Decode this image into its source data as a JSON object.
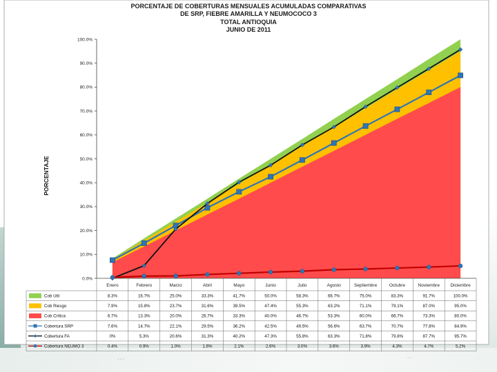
{
  "chart_data": {
    "type": "area",
    "title_lines": [
      "PORCENTAJE DE COBERTURAS MENSUALES ACUMULADAS COMPARATIVAS",
      "DE SRP, FIEBRE AMARILLA Y NEUMOCOCO 3",
      "TOTAL ANTIOQUIA",
      "JUNIO DE 2011"
    ],
    "ylabel": "PORCENTAJE",
    "ylim": [
      0,
      100
    ],
    "y_ticks": [
      "0.0%",
      "10.0%",
      "20.0%",
      "30.0%",
      "40.0%",
      "50.0%",
      "60.0%",
      "70.0%",
      "80.0%",
      "90.0%",
      "100.0%"
    ],
    "categories": [
      "Enero",
      "Febrero",
      "Marzo",
      "Abril",
      "Mayo",
      "Junio",
      "Julio",
      "Agosto",
      "Septiembre",
      "Octubre",
      "Noviembre",
      "Diciembre"
    ],
    "stacked_areas": [
      {
        "name": "Cob Crítica",
        "color": "#ff4b4b",
        "values": [
          6.7,
          13.3,
          20.0,
          26.7,
          33.3,
          40.0,
          46.7,
          53.3,
          60.0,
          66.7,
          73.3,
          80.0
        ],
        "labels": [
          "6.7%",
          "13.3%",
          "20.0%",
          "26.7%",
          "33.3%",
          "40.0%",
          "46.7%",
          "53.3%",
          "60.0%",
          "66.7%",
          "73.3%",
          "80.0%"
        ]
      },
      {
        "name": "Cob Riesgo",
        "color": "#ffc000",
        "values": [
          7.9,
          15.8,
          23.7,
          31.6,
          39.5,
          47.4,
          55.3,
          63.2,
          71.1,
          79.1,
          87.0,
          95.0
        ],
        "labels": [
          "7.9%",
          "15.8%",
          "23.7%",
          "31.6%",
          "39.5%",
          "47.4%",
          "55.3%",
          "63.2%",
          "71.1%",
          "79.1%",
          "87.0%",
          "95.0%"
        ]
      },
      {
        "name": "Cob Util",
        "color": "#92d050",
        "values": [
          8.3,
          16.7,
          25.0,
          33.3,
          41.7,
          50.0,
          58.3,
          66.7,
          75.0,
          83.3,
          91.7,
          100.0
        ],
        "labels": [
          "8.3%",
          "16.7%",
          "25.0%",
          "33.3%",
          "41.7%",
          "50.0%",
          "58.3%",
          "66.7%",
          "75.0%",
          "83.3%",
          "91.7%",
          "100.0%"
        ]
      }
    ],
    "line_series": [
      {
        "name": "Cobertura SRP",
        "color": "#2e75b6",
        "marker": "square",
        "width": 2.2,
        "values": [
          7.6,
          14.7,
          22.1,
          29.5,
          36.2,
          42.5,
          49.5,
          56.6,
          63.7,
          70.7,
          77.8,
          84.9
        ],
        "labels": [
          "7.6%",
          "14.7%",
          "22.1%",
          "29.5%",
          "36.2%",
          "42.5%",
          "49.5%",
          "56.6%",
          "63.7%",
          "70.7%",
          "77.8%",
          "84.9%"
        ]
      },
      {
        "name": "Cobertura FA",
        "color": "#111111",
        "marker": "diamond",
        "width": 1.8,
        "values": [
          0.0,
          5.3,
          20.6,
          31.3,
          40.2,
          47.3,
          55.8,
          63.3,
          71.8,
          79.8,
          87.7,
          95.7
        ],
        "labels": [
          "0%",
          "5.3%",
          "20.6%",
          "31.3%",
          "40.2%",
          "47.3%",
          "55.8%",
          "63.3%",
          "71.8%",
          "79.8%",
          "87.7%",
          "95.7%"
        ]
      },
      {
        "name": "Cobertura NEUMO 3",
        "color": "#c00000",
        "marker": "circle",
        "width": 2.2,
        "values": [
          0.4,
          0.9,
          1.0,
          1.6,
          2.1,
          2.6,
          3.0,
          3.6,
          3.9,
          4.3,
          4.7,
          5.2
        ],
        "labels": [
          "0.4%",
          "0.9%",
          "1.0%",
          "1.6%",
          "2.1%",
          "2.6%",
          "3.0%",
          "3.6%",
          "3.9%",
          "4.3%",
          "4.7%",
          "5.2%"
        ]
      }
    ],
    "table_rows_order": [
      "Cob Util",
      "Cob Riesgo",
      "Cob Crítica",
      "Cobertura SRP",
      "Cobertura FA",
      "Cobertura NEUMO 3"
    ],
    "grid": false
  },
  "footer": {
    "text": "...",
    "right_text": "..."
  }
}
